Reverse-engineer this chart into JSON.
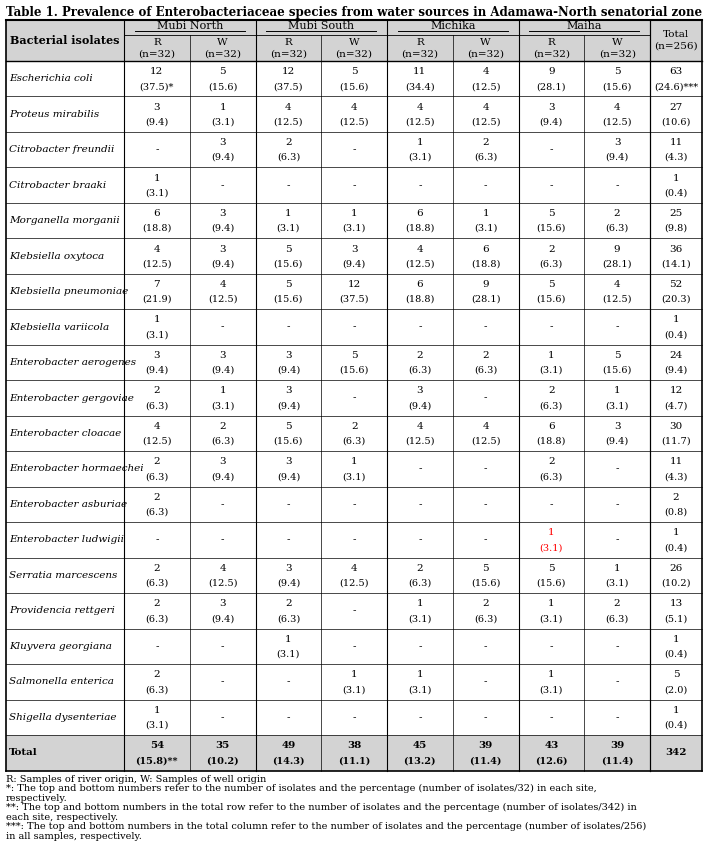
{
  "title": "Table 1. Prevalence of Enterobacteriaceae species from water sources in Adamawa-North senatorial zone",
  "col_groups": [
    "Mubi North",
    "Mubi South",
    "Michika",
    "Maiha"
  ],
  "row_labels": [
    "Escherichia coli",
    "Proteus mirabilis",
    "Citrobacter freundii",
    "Citrobacter braaki",
    "Morganella morganii",
    "Klebsiella oxytoca",
    "Klebsiella pneumoniae",
    "Klebsiella variicola",
    "Enterobacter aerogenes",
    "Enterobacter gergoviae",
    "Enterobacter cloacae",
    "Enterobacter hormaechei",
    "Enterobacter asburiae",
    "Enterobacter ludwigii",
    "Serratia marcescens",
    "Providencia rettgeri",
    "Kluyvera georgiana",
    "Salmonella enterica",
    "Shigella dysenteriae",
    "Total"
  ],
  "data": [
    [
      "12",
      "(37.5)*",
      "5",
      "(15.6)",
      "12",
      "(37.5)",
      "5",
      "(15.6)",
      "11",
      "(34.4)",
      "4",
      "(12.5)",
      "9",
      "(28.1)",
      "5",
      "(15.6)",
      "63",
      "(24.6)***"
    ],
    [
      "3",
      "(9.4)",
      "1",
      "(3.1)",
      "4",
      "(12.5)",
      "4",
      "(12.5)",
      "4",
      "(12.5)",
      "4",
      "(12.5)",
      "3",
      "(9.4)",
      "4",
      "(12.5)",
      "27",
      "(10.6)"
    ],
    [
      "-",
      "",
      "3",
      "(9.4)",
      "2",
      "(6.3)",
      "-",
      "",
      "1",
      "(3.1)",
      "2",
      "(6.3)",
      "-",
      "",
      "3",
      "(9.4)",
      "11",
      "(4.3)"
    ],
    [
      "1",
      "(3.1)",
      "-",
      "",
      "-",
      "",
      "-",
      "",
      "-",
      "",
      "-",
      "",
      "-",
      "",
      "-",
      "",
      "1",
      "(0.4)"
    ],
    [
      "6",
      "(18.8)",
      "3",
      "(9.4)",
      "1",
      "(3.1)",
      "1",
      "(3.1)",
      "6",
      "(18.8)",
      "1",
      "(3.1)",
      "5",
      "(15.6)",
      "2",
      "(6.3)",
      "25",
      "(9.8)"
    ],
    [
      "4",
      "(12.5)",
      "3",
      "(9.4)",
      "5",
      "(15.6)",
      "3",
      "(9.4)",
      "4",
      "(12.5)",
      "6",
      "(18.8)",
      "2",
      "(6.3)",
      "9",
      "(28.1)",
      "36",
      "(14.1)"
    ],
    [
      "7",
      "(21.9)",
      "4",
      "(12.5)",
      "5",
      "(15.6)",
      "12",
      "(37.5)",
      "6",
      "(18.8)",
      "9",
      "(28.1)",
      "5",
      "(15.6)",
      "4",
      "(12.5)",
      "52",
      "(20.3)"
    ],
    [
      "1",
      "(3.1)",
      "-",
      "",
      "-",
      "",
      "-",
      "",
      "-",
      "",
      "-",
      "",
      "-",
      "",
      "-",
      "",
      "1",
      "(0.4)"
    ],
    [
      "3",
      "(9.4)",
      "3",
      "(9.4)",
      "3",
      "(9.4)",
      "5",
      "(15.6)",
      "2",
      "(6.3)",
      "2",
      "(6.3)",
      "1",
      "(3.1)",
      "5",
      "(15.6)",
      "24",
      "(9.4)"
    ],
    [
      "2",
      "(6.3)",
      "1",
      "(3.1)",
      "3",
      "(9.4)",
      "-",
      "",
      "3",
      "(9.4)",
      "-",
      "",
      "2",
      "(6.3)",
      "1",
      "(3.1)",
      "12",
      "(4.7)"
    ],
    [
      "4",
      "(12.5)",
      "2",
      "(6.3)",
      "5",
      "(15.6)",
      "2",
      "(6.3)",
      "4",
      "(12.5)",
      "4",
      "(12.5)",
      "6",
      "(18.8)",
      "3",
      "(9.4)",
      "30",
      "(11.7)"
    ],
    [
      "2",
      "(6.3)",
      "3",
      "(9.4)",
      "3",
      "(9.4)",
      "1",
      "(3.1)",
      "-",
      "",
      "-",
      "",
      "2",
      "(6.3)",
      "-",
      "",
      "11",
      "(4.3)"
    ],
    [
      "2",
      "(6.3)",
      "-",
      "",
      "-",
      "",
      "-",
      "",
      "-",
      "",
      "-",
      "",
      "-",
      "",
      "-",
      "",
      "2",
      "(0.8)"
    ],
    [
      "-",
      "",
      "-",
      "",
      "-",
      "",
      "-",
      "",
      "-",
      "",
      "-",
      "",
      "1",
      "(3.1)",
      "-",
      "",
      "1",
      "(0.4)"
    ],
    [
      "2",
      "(6.3)",
      "4",
      "(12.5)",
      "3",
      "(9.4)",
      "4",
      "(12.5)",
      "2",
      "(6.3)",
      "5",
      "(15.6)",
      "5",
      "(15.6)",
      "1",
      "(3.1)",
      "26",
      "(10.2)"
    ],
    [
      "2",
      "(6.3)",
      "3",
      "(9.4)",
      "2",
      "(6.3)",
      "-",
      "",
      "1",
      "(3.1)",
      "2",
      "(6.3)",
      "1",
      "(3.1)",
      "2",
      "(6.3)",
      "13",
      "(5.1)"
    ],
    [
      "-",
      "",
      "-",
      "",
      "1",
      "(3.1)",
      "-",
      "",
      "-",
      "",
      "-",
      "",
      "-",
      "",
      "-",
      "",
      "1",
      "(0.4)"
    ],
    [
      "2",
      "(6.3)",
      "-",
      "",
      "-",
      "",
      "1",
      "(3.1)",
      "1",
      "(3.1)",
      "-",
      "",
      "1",
      "(3.1)",
      "-",
      "",
      "5",
      "(2.0)"
    ],
    [
      "1",
      "(3.1)",
      "-",
      "",
      "-",
      "",
      "-",
      "",
      "-",
      "",
      "-",
      "",
      "-",
      "",
      "-",
      "",
      "1",
      "(0.4)"
    ],
    [
      "54",
      "(15.8)**",
      "35",
      "(10.2)",
      "49",
      "(14.3)",
      "38",
      "(11.1)",
      "45",
      "(13.2)",
      "39",
      "(11.4)",
      "43",
      "(12.6)",
      "39",
      "(11.4)",
      "342",
      ""
    ]
  ],
  "footnotes": [
    "R: Samples of river origin, W: Samples of well origin",
    "*: The top and bottom numbers refer to the number of isolates and the percentage (number of isolates/32) in each site,",
    "respectively.",
    "**: The top and bottom numbers in the total row refer to the number of isolates and the percentage (number of isolates/342) in",
    "each site, respectively.",
    "***: The top and bottom numbers in the total column refer to the number of isolates and the percentage (number of isolates/256)",
    "in all samples, respectively."
  ],
  "bg_header": "#d3d3d3",
  "bg_white": "#ffffff",
  "border": "#000000",
  "title_fontsize": 8.5,
  "header_fontsize": 8.0,
  "cell_fontsize": 7.5,
  "footnote_fontsize": 7.0,
  "red_color": "#ff0000"
}
